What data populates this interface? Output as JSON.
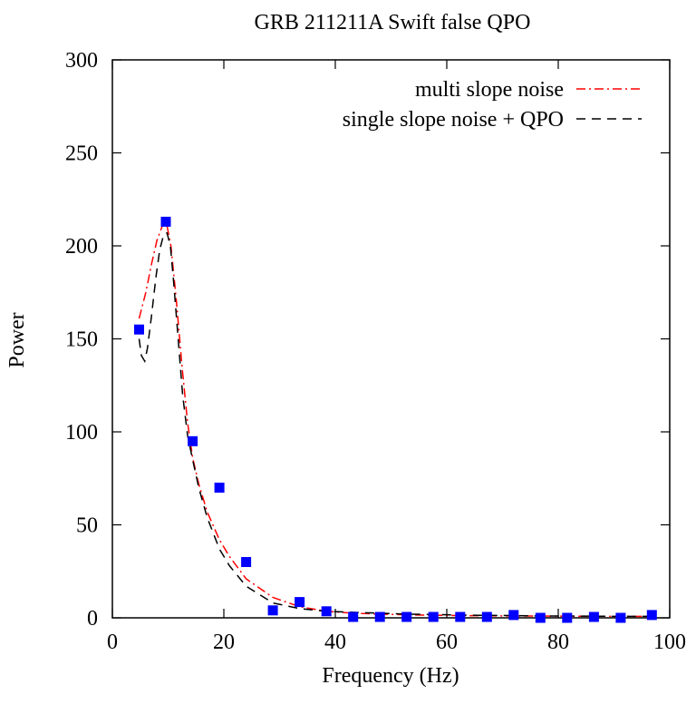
{
  "chart_data": {
    "type": "line",
    "title": "GRB 211211A Swift false QPO",
    "xlabel": "Frequency (Hz)",
    "ylabel": "Power",
    "xlim": [
      0,
      100
    ],
    "ylim": [
      0,
      300
    ],
    "xticks": [
      "0",
      "20",
      "40",
      "60",
      "80",
      "100"
    ],
    "yticks": [
      "0",
      "50",
      "100",
      "150",
      "200",
      "250",
      "300"
    ],
    "grid": false,
    "legend_position": "top-right",
    "points": {
      "color": "#0000ff",
      "marker": "square",
      "x": [
        4.8,
        9.6,
        14.4,
        19.2,
        24.0,
        28.8,
        33.6,
        38.4,
        43.2,
        48.0,
        52.8,
        57.6,
        62.4,
        67.2,
        72.0,
        76.8,
        81.6,
        86.4,
        91.2,
        96.8
      ],
      "y": [
        155,
        213,
        95,
        70,
        30,
        4,
        8.5,
        3.5,
        0.5,
        0.5,
        0.5,
        0.5,
        0.5,
        0.5,
        1.5,
        0,
        0,
        0.5,
        0,
        1.5
      ]
    },
    "series": [
      {
        "name": "multi slope noise",
        "color": "#ff0000",
        "dash": "dash-dot",
        "x": [
          4.8,
          6,
          7,
          8,
          9,
          9.6,
          10.5,
          11.5,
          12.5,
          13.5,
          14.4,
          15.5,
          17,
          19.2,
          21,
          24,
          28.8,
          33.6,
          38.4,
          43.2,
          48,
          52.8,
          57.6,
          62.4,
          67.2,
          72,
          76.8,
          81.6,
          86.4,
          91.2,
          96.8
        ],
        "y": [
          161,
          175,
          190,
          203,
          211,
          214,
          200,
          170,
          135,
          105,
          86,
          72,
          57,
          42,
          33,
          21,
          11,
          6,
          3.5,
          2.5,
          2,
          1.6,
          1.4,
          1.2,
          1.1,
          1,
          1,
          0.9,
          0.9,
          0.8,
          0.8
        ]
      },
      {
        "name": "single slope noise + QPO",
        "color": "#000000",
        "dash": "dashed",
        "x": [
          4.8,
          5.2,
          5.8,
          6.3,
          7,
          7.8,
          8.5,
          9.2,
          9.8,
          10.4,
          11,
          11.8,
          12.6,
          13.5,
          14.4,
          15.5,
          17,
          19.2,
          21,
          24,
          28.8,
          33.6,
          38.4,
          43.2,
          48,
          52.8,
          57.6,
          62.4,
          67.2,
          72,
          76.8,
          81.6,
          86.4,
          91.2,
          96.8
        ],
        "y": [
          150,
          141,
          138,
          145,
          162,
          183,
          198,
          206,
          207,
          200,
          180,
          150,
          120,
          98,
          85,
          70,
          54,
          37,
          28,
          17,
          8,
          5,
          3.5,
          3,
          2.5,
          2,
          1.8,
          1.5,
          1.3,
          1.2,
          1,
          1,
          0.9,
          0.8,
          0.8
        ]
      }
    ]
  }
}
